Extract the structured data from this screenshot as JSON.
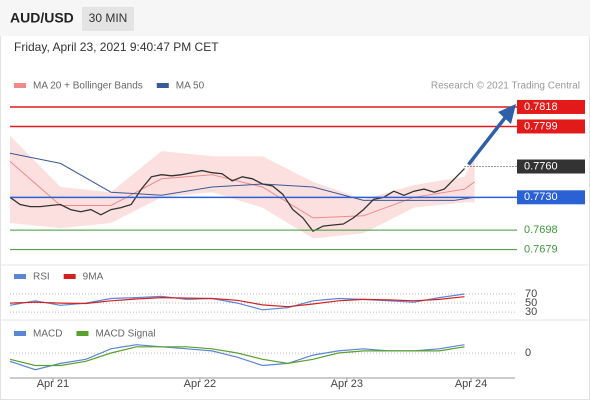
{
  "symbol": "AUD/USD",
  "timeframe": "30 MIN",
  "datetime": "Friday, April 23, 2021 9:40:47 PM CET",
  "source": "Research © 2021 Trading Central",
  "chart_data": [
    {
      "type": "line",
      "xlim": [
        0,
        100
      ],
      "ylim": [
        0.7667,
        0.7854
      ],
      "price": {
        "color": "#333333",
        "x": [
          0,
          2,
          4,
          6,
          8,
          10,
          12,
          14,
          16,
          18,
          20,
          22,
          24,
          26,
          28,
          30,
          32,
          34,
          36,
          38,
          40,
          42,
          44,
          46,
          48,
          50,
          52,
          54,
          56,
          58,
          60,
          62,
          64,
          66,
          68,
          70,
          72,
          74,
          76,
          78,
          80,
          82,
          84,
          86,
          88,
          90
        ],
        "values": [
          0.773,
          0.7723,
          0.7721,
          0.7721,
          0.7722,
          0.7723,
          0.7718,
          0.7716,
          0.7718,
          0.7713,
          0.7718,
          0.772,
          0.7723,
          0.7738,
          0.775,
          0.7752,
          0.7751,
          0.7752,
          0.7754,
          0.7756,
          0.7754,
          0.7753,
          0.7746,
          0.775,
          0.7748,
          0.7743,
          0.7741,
          0.7733,
          0.7718,
          0.771,
          0.7697,
          0.7702,
          0.7703,
          0.7704,
          0.771,
          0.7718,
          0.7728,
          0.773,
          0.7736,
          0.7732,
          0.7736,
          0.7738,
          0.7735,
          0.7738,
          0.7748,
          0.7758
        ]
      },
      "series": [
        {
          "name": "MA 20 + Bollinger Bands",
          "color": "#f08a8a",
          "band_color": "#fbd7d7",
          "x": [
            0,
            10,
            20,
            30,
            40,
            50,
            60,
            70,
            80,
            90,
            92
          ],
          "values": [
            0.7765,
            0.7722,
            0.7722,
            0.7748,
            0.7752,
            0.774,
            0.771,
            0.7712,
            0.773,
            0.7738,
            0.7745
          ],
          "upper": [
            0.779,
            0.774,
            0.7735,
            0.7775,
            0.777,
            0.777,
            0.7745,
            0.7728,
            0.7742,
            0.775,
            0.777
          ],
          "lower": [
            0.7705,
            0.77,
            0.7705,
            0.773,
            0.7735,
            0.772,
            0.769,
            0.7695,
            0.772,
            0.7725,
            0.7725
          ]
        },
        {
          "name": "MA 50",
          "color": "#3a5a98",
          "x": [
            0,
            10,
            20,
            30,
            40,
            50,
            60,
            70,
            80,
            88,
            92
          ],
          "values": [
            0.7773,
            0.7763,
            0.7735,
            0.7732,
            0.774,
            0.7743,
            0.774,
            0.7727,
            0.7727,
            0.7727,
            0.773
          ]
        }
      ],
      "levels": [
        {
          "value": 0.7818,
          "label": "0.7818",
          "color": "#e31a1a",
          "style": "box",
          "line": "solid"
        },
        {
          "value": 0.7799,
          "label": "0.7799",
          "color": "#e31a1a",
          "style": "box",
          "line": "solid"
        },
        {
          "value": 0.776,
          "label": "0.7760",
          "color": "#333333",
          "style": "box",
          "line": "dotted"
        },
        {
          "value": 0.773,
          "label": "0.7730",
          "color": "#2a62d6",
          "style": "box",
          "line": "solid"
        },
        {
          "value": 0.7698,
          "label": "0.7698",
          "color": "#3a9a3a",
          "style": "text",
          "line": "solid"
        },
        {
          "value": 0.7679,
          "label": "0.7679",
          "color": "#3a9a3a",
          "style": "text",
          "line": "solid"
        }
      ]
    },
    {
      "type": "line",
      "xlim": [
        0,
        100
      ],
      "ylim": [
        17,
        123
      ],
      "yticks": [
        70,
        50,
        30
      ],
      "series": [
        {
          "name": "RSI",
          "color": "#5b86d6",
          "x": [
            0,
            5,
            10,
            15,
            20,
            25,
            30,
            35,
            40,
            45,
            50,
            55,
            60,
            65,
            70,
            75,
            80,
            85,
            90
          ],
          "values": [
            45,
            55,
            45,
            50,
            60,
            62,
            65,
            58,
            60,
            50,
            35,
            40,
            55,
            60,
            58,
            55,
            52,
            62,
            70
          ]
        },
        {
          "name": "9MA",
          "color": "#d62020",
          "x": [
            0,
            5,
            10,
            15,
            20,
            25,
            30,
            35,
            40,
            45,
            50,
            55,
            60,
            65,
            70,
            75,
            80,
            85,
            90
          ],
          "values": [
            50,
            52,
            50,
            49,
            55,
            59,
            62,
            61,
            60,
            56,
            46,
            42,
            48,
            55,
            58,
            57,
            55,
            58,
            64
          ]
        }
      ]
    },
    {
      "type": "line",
      "xlim": [
        0,
        100
      ],
      "ylim": [
        -0.0012,
        0.0012
      ],
      "yticks": [
        0
      ],
      "xticks": [
        {
          "value": 8.5,
          "label": "Apr 21"
        },
        {
          "value": 37.6,
          "label": "Apr 22"
        },
        {
          "value": 66.7,
          "label": "Apr 23"
        },
        {
          "value": 91.3,
          "label": "Apr 24"
        }
      ],
      "series": [
        {
          "name": "MACD",
          "color": "#5b86d6",
          "x": [
            0,
            5,
            10,
            15,
            20,
            25,
            30,
            35,
            40,
            45,
            50,
            55,
            60,
            65,
            70,
            75,
            80,
            85,
            90
          ],
          "values": [
            -0.0004,
            -0.0008,
            -0.0005,
            -0.0003,
            0.0002,
            0.0004,
            0.0003,
            0.0002,
            0.0001,
            -0.0002,
            -0.0006,
            -0.0005,
            -0.0001,
            0.0001,
            0.0002,
            0.0001,
            0.0001,
            0.0002,
            0.0004
          ]
        },
        {
          "name": "MACD Signal",
          "color": "#5aa02c",
          "x": [
            0,
            5,
            10,
            15,
            20,
            25,
            30,
            35,
            40,
            45,
            50,
            55,
            60,
            65,
            70,
            75,
            80,
            85,
            90
          ],
          "values": [
            -0.0003,
            -0.0006,
            -0.0006,
            -0.0004,
            0.0,
            0.0003,
            0.0003,
            0.0003,
            0.0002,
            0.0,
            -0.0003,
            -0.0005,
            -0.0003,
            0.0,
            0.0001,
            0.0001,
            0.0001,
            0.0001,
            0.0003
          ]
        }
      ]
    }
  ]
}
